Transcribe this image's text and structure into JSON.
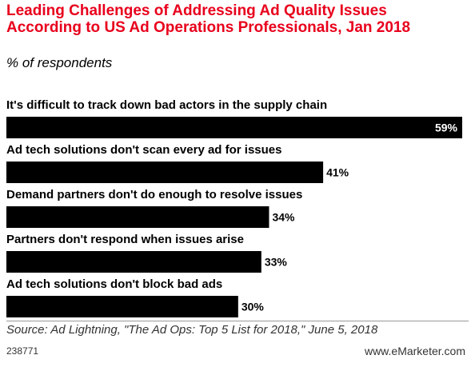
{
  "title": "Leading Challenges of Addressing Ad Quality Issues According to US Ad Operations Professionals, Jan 2018",
  "subtitle": "% of respondents",
  "source": "Source: Ad Lightning, \"The Ad Ops: Top 5 List for 2018,\" June 5, 2018",
  "chart_id": "238771",
  "brand": "www.eMarketer.com",
  "colors": {
    "title": "#e8001c",
    "bar": "#000000",
    "label_inside": "#ffffff",
    "label_outside": "#000000"
  },
  "chart_data": {
    "type": "bar",
    "orientation": "horizontal",
    "categories": [
      "It's difficult to track down bad actors in the supply chain",
      "Ad tech solutions don't scan every ad for issues",
      "Demand partners don't do enough to resolve issues",
      "Partners don't respond when issues arise",
      "Ad tech solutions don't block bad ads"
    ],
    "values": [
      59,
      41,
      34,
      33,
      30
    ],
    "value_labels": [
      "59%",
      "41%",
      "34%",
      "33%",
      "30%"
    ],
    "unit": "%",
    "xlim": [
      0,
      59
    ],
    "grid": false,
    "legend": "none"
  }
}
